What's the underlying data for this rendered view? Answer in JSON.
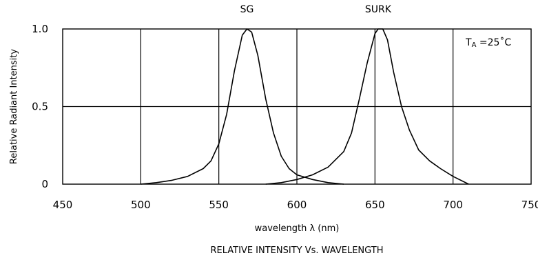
{
  "chart_data": {
    "type": "line",
    "title": "RELATIVE  INTENSITY  Vs.  WAVELENGTH",
    "xlabel": "wavelength  λ  (nm)",
    "ylabel": "Relative  Radiant  Intensity",
    "annotation": {
      "main": "T",
      "sub": "A",
      "rest": " =25˚C"
    },
    "xlim": [
      450,
      750
    ],
    "ylim": [
      0,
      1.0
    ],
    "x_ticks": [
      450,
      500,
      550,
      600,
      650,
      700,
      750
    ],
    "x_tick_labels": [
      "450",
      "500",
      "550",
      "600",
      "650",
      "700",
      "750"
    ],
    "y_ticks": [
      0,
      0.5,
      1.0
    ],
    "y_tick_labels": [
      "0",
      "0.5",
      "1.0"
    ],
    "grid": true,
    "series": [
      {
        "name": "SG",
        "color": "#000000",
        "points": [
          [
            500,
            0.0
          ],
          [
            510,
            0.01
          ],
          [
            520,
            0.025
          ],
          [
            530,
            0.05
          ],
          [
            540,
            0.1
          ],
          [
            545,
            0.15
          ],
          [
            550,
            0.26
          ],
          [
            555,
            0.45
          ],
          [
            560,
            0.73
          ],
          [
            565,
            0.96
          ],
          [
            568,
            1.0
          ],
          [
            571,
            0.98
          ],
          [
            575,
            0.83
          ],
          [
            580,
            0.55
          ],
          [
            585,
            0.33
          ],
          [
            590,
            0.18
          ],
          [
            595,
            0.1
          ],
          [
            600,
            0.06
          ],
          [
            610,
            0.03
          ],
          [
            620,
            0.01
          ],
          [
            630,
            0.0
          ]
        ]
      },
      {
        "name": "SURK",
        "color": "#000000",
        "points": [
          [
            580,
            0.0
          ],
          [
            590,
            0.01
          ],
          [
            600,
            0.03
          ],
          [
            610,
            0.06
          ],
          [
            620,
            0.11
          ],
          [
            630,
            0.21
          ],
          [
            635,
            0.33
          ],
          [
            640,
            0.55
          ],
          [
            645,
            0.78
          ],
          [
            650,
            0.97
          ],
          [
            652,
            1.0
          ],
          [
            655,
            1.0
          ],
          [
            658,
            0.93
          ],
          [
            662,
            0.72
          ],
          [
            667,
            0.5
          ],
          [
            672,
            0.35
          ],
          [
            678,
            0.22
          ],
          [
            685,
            0.15
          ],
          [
            692,
            0.1
          ],
          [
            700,
            0.05
          ],
          [
            710,
            0.0
          ]
        ]
      }
    ]
  }
}
